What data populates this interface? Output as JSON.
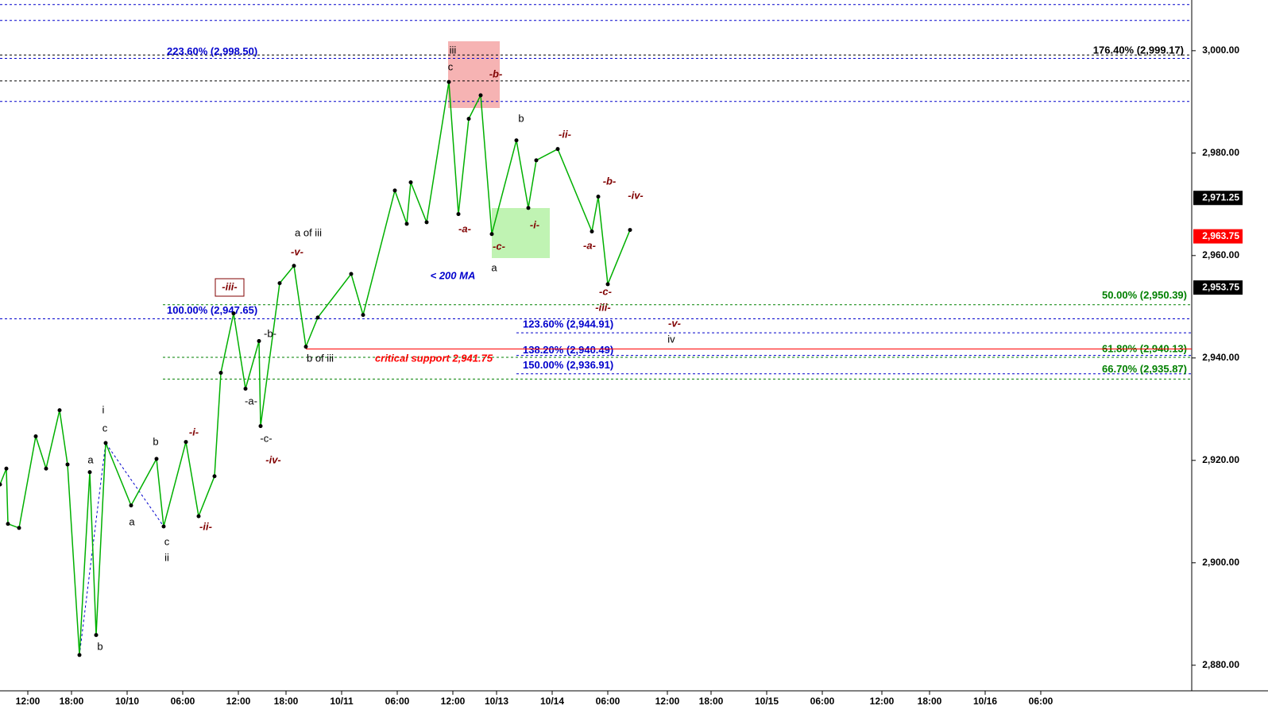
{
  "chart_data": {
    "type": "line",
    "x": [
      0,
      1.6,
      2,
      4.8,
      9,
      11.6,
      15,
      17,
      20,
      22.6,
      24.2,
      26.6,
      33,
      39.4,
      41.2,
      46.8,
      50,
      54,
      55.6,
      58.8,
      61.8,
      65.2,
      65.6,
      70.4,
      74,
      77,
      80,
      88.4,
      91.4,
      99.4,
      102.4,
      103.4,
      107.4,
      113,
      115.4,
      118,
      121,
      123.8,
      130,
      133,
      135,
      140.4,
      149,
      150.6,
      153,
      158.6
    ],
    "values": [
      2915.3,
      2918.4,
      2907.6,
      2906.8,
      2924.7,
      2918.4,
      2929.8,
      2919.2,
      2882.0,
      2917.7,
      2885.9,
      2923.4,
      2911.2,
      2920.3,
      2907.1,
      2923.6,
      2909.1,
      2916.9,
      2937.1,
      2948.7,
      2934.0,
      2943.3,
      2926.7,
      2954.6,
      2958.0,
      2942.2,
      2947.9,
      2956.4,
      2948.4,
      2972.7,
      2966.2,
      2974.3,
      2966.5,
      2993.9,
      2968.1,
      2986.7,
      2991.3,
      2964.2,
      2982.5,
      2969.3,
      2978.6,
      2980.8,
      2964.7,
      2971.5,
      2954.4,
      2965.0
    ],
    "color": "#00b000",
    "xlim": [
      0,
      300
    ],
    "ylim": [
      2875,
      3009.9
    ],
    "xticks": [
      {
        "value": 7,
        "label": "12:00"
      },
      {
        "value": 18,
        "label": "18:00"
      },
      {
        "value": 32,
        "label": "10/10"
      },
      {
        "value": 46,
        "label": "06:00"
      },
      {
        "value": 60,
        "label": "12:00"
      },
      {
        "value": 72,
        "label": "18:00"
      },
      {
        "value": 86,
        "label": "10/11"
      },
      {
        "value": 100,
        "label": "06:00"
      },
      {
        "value": 114,
        "label": "12:00"
      },
      {
        "value": 125,
        "label": "10/13"
      },
      {
        "value": 139,
        "label": "10/14"
      },
      {
        "value": 153,
        "label": "06:00"
      },
      {
        "value": 168,
        "label": "12:00"
      },
      {
        "value": 179,
        "label": "18:00"
      },
      {
        "value": 193,
        "label": "10/15"
      },
      {
        "value": 207,
        "label": "06:00"
      },
      {
        "value": 222,
        "label": "12:00"
      },
      {
        "value": 234,
        "label": "18:00"
      },
      {
        "value": 248,
        "label": "10/16"
      },
      {
        "value": 262,
        "label": "06:00"
      }
    ],
    "yticks": [
      {
        "value": 2880,
        "label": "2,880.00"
      },
      {
        "value": 2900,
        "label": "2,900.00"
      },
      {
        "value": 2920,
        "label": "2,920.00"
      },
      {
        "value": 2940,
        "label": "2,940.00"
      },
      {
        "value": 2960,
        "label": "2,960.00"
      },
      {
        "value": 2980,
        "label": "2,980.00"
      },
      {
        "value": 3000,
        "label": "3,000.00"
      }
    ],
    "levels": [
      {
        "value": 3009.0,
        "color": "#0000cc"
      },
      {
        "value": 3005.9,
        "color": "#0000cc"
      },
      {
        "value": 2999.17,
        "label": "176.40% (2,999.17)",
        "color": "#000000"
      },
      {
        "value": 2998.5,
        "label": "223.60% (2,998.50)",
        "color": "#0000cc"
      },
      {
        "value": 2994.1,
        "color": "#000000"
      },
      {
        "value": 2990.1,
        "color": "#0000cc"
      },
      {
        "value": 2950.39,
        "label": "50.00% (2,950.39)",
        "color": "#008000"
      },
      {
        "value": 2947.65,
        "label": "100.00% (2,947.65)",
        "color": "#0000cc"
      },
      {
        "value": 2944.91,
        "label": "123.60% (2,944.91)",
        "color": "#0000cc"
      },
      {
        "value": 2940.49,
        "label": "138.20% (2,940.49)",
        "color": "#0000cc"
      },
      {
        "value": 2940.13,
        "label": "61.80% (2,940.13)",
        "color": "#008000"
      },
      {
        "value": 2936.91,
        "label": "150.00% (2,936.91)",
        "color": "#0000cc"
      },
      {
        "value": 2935.87,
        "label": "66.70% (2,935.87)",
        "color": "#008000"
      }
    ],
    "support": {
      "value": 2941.75,
      "label": "critical support 2,941.75",
      "color": "#ff0000"
    },
    "price_tags": [
      {
        "value": 2971.25,
        "label": "2,971.25",
        "color": "#000000"
      },
      {
        "value": 2963.75,
        "label": "2,963.75",
        "color": "#ff0000"
      },
      {
        "value": 2953.75,
        "label": "2,953.75",
        "color": "#000000"
      }
    ],
    "annotations": [
      "i",
      "c",
      "a",
      "b",
      "b",
      "a",
      "c",
      "ii",
      "-i-",
      "-ii-",
      "-iii-",
      "-b-",
      "-a-",
      "-c-",
      "-iv-",
      "-v-",
      "a of iii",
      "b of iii",
      "< 200 MA",
      "iii",
      "c",
      "-b-",
      "-a-",
      "-c-",
      "a",
      "b",
      "-i-",
      "-ii-",
      "-b-",
      "-iv-",
      "-a-",
      "-c-",
      "-iii-",
      "-v-",
      "iv"
    ]
  }
}
